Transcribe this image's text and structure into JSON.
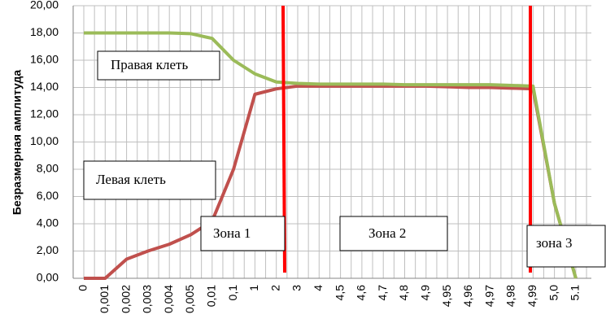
{
  "chart_data": {
    "type": "line",
    "y_axis_label": "Безразмерная амплитуда",
    "categories": [
      "0",
      "0,001",
      "0,002",
      "0,003",
      "0,004",
      "0,005",
      "0,01",
      "0,1",
      "1",
      "2",
      "3",
      "4",
      "4,5",
      "4,6",
      "4,7",
      "4,8",
      "4,9",
      "4,95",
      "4,96",
      "4,97",
      "4,98",
      "4,99",
      "5,0",
      "5.1"
    ],
    "series": [
      {
        "name": "Левая клеть",
        "color": "#c0504d",
        "values": [
          0,
          0,
          1.4,
          2,
          2.5,
          3.2,
          4.2,
          8,
          13.5,
          13.9,
          14.1,
          14.1,
          14.1,
          14.1,
          14.1,
          14.1,
          14.1,
          14.05,
          14.0,
          14.0,
          13.95,
          13.9,
          5.5,
          0
        ]
      },
      {
        "name": "Правая клеть",
        "color": "#9bbb59",
        "values": [
          18,
          18,
          18,
          18,
          18,
          17.95,
          17.6,
          16,
          15,
          14.4,
          14.3,
          14.25,
          14.25,
          14.25,
          14.25,
          14.2,
          14.2,
          14.2,
          14.2,
          14.2,
          14.15,
          14.1,
          5.5,
          0
        ]
      }
    ],
    "annotations": [
      "Зона 1",
      "Зона 2",
      "зона 3"
    ],
    "ylim": [
      0,
      20
    ],
    "yticks": [
      {
        "value": 0,
        "label": "0,00"
      },
      {
        "value": 2,
        "label": "2,00"
      },
      {
        "value": 4,
        "label": "4,00"
      },
      {
        "value": 6,
        "label": "6,00"
      },
      {
        "value": 8,
        "label": "8,00"
      },
      {
        "value": 10,
        "label": "10,00"
      },
      {
        "value": 12,
        "label": "12,00"
      },
      {
        "value": 14,
        "label": "14,00"
      },
      {
        "value": 16,
        "label": "16,00"
      },
      {
        "value": 18,
        "label": "18,00"
      },
      {
        "value": 20,
        "label": "20,00"
      }
    ],
    "grid": true
  }
}
